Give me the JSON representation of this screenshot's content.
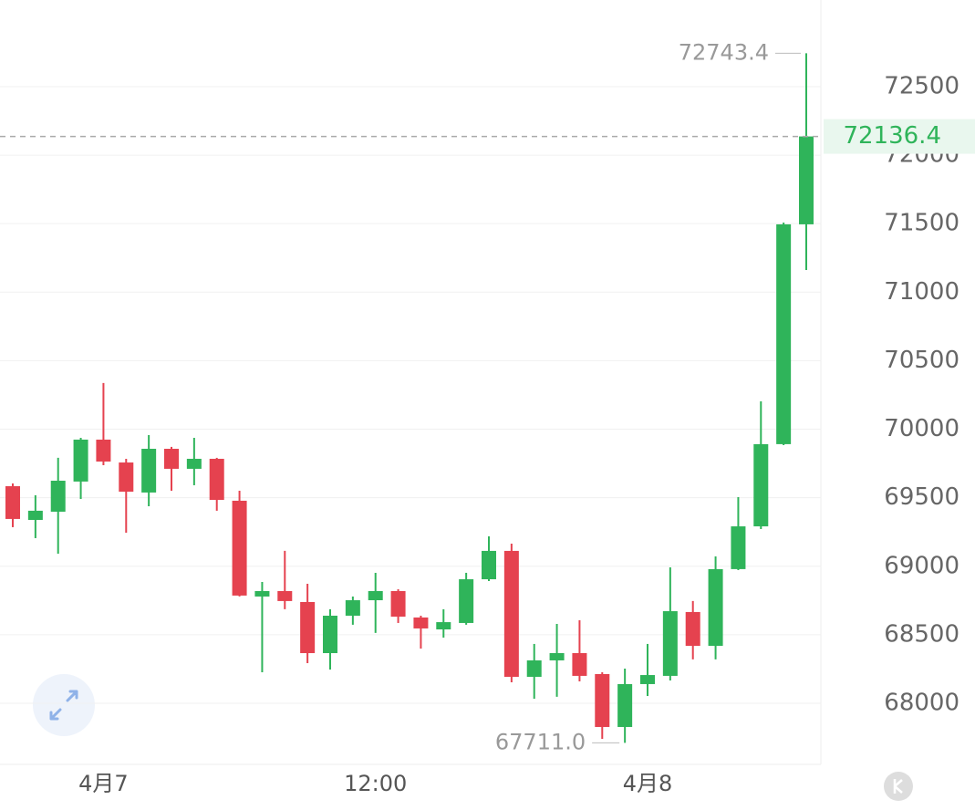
{
  "chart_data": {
    "type": "candlestick",
    "categories": [
      null,
      null,
      null,
      null,
      "4月7",
      null,
      null,
      null,
      null,
      null,
      null,
      null,
      null,
      null,
      null,
      null,
      "12:00",
      null,
      null,
      null,
      null,
      null,
      null,
      null,
      null,
      null,
      null,
      null,
      "4月8",
      null,
      null,
      null,
      null,
      null,
      null,
      null
    ],
    "open": [
      69584,
      69338,
      69398,
      69618,
      69924,
      69757,
      69538,
      69857,
      69711,
      69784,
      69478,
      68779,
      68819,
      68739,
      68366,
      68639,
      68752,
      68819,
      68626,
      68539,
      68586,
      68905,
      69112,
      68193,
      68313,
      68366,
      68213,
      67827,
      68140,
      68200,
      68666,
      68419,
      68979,
      69291,
      69891,
      71495
    ],
    "high": [
      69604,
      69518,
      69791,
      69937,
      70337,
      69784,
      69957,
      69871,
      69937,
      69791,
      69551,
      68885,
      69112,
      68872,
      68686,
      68779,
      68952,
      68832,
      68639,
      68686,
      68952,
      69218,
      69165,
      68433,
      68579,
      68606,
      68226,
      68253,
      68433,
      68992,
      68746,
      69072,
      69504,
      70203,
      71508,
      72743.4
    ],
    "low": [
      69285,
      69205,
      69092,
      69491,
      69737,
      69245,
      69438,
      69551,
      69591,
      69405,
      68780,
      68226,
      68686,
      68293,
      68246,
      68573,
      68513,
      68586,
      68399,
      68479,
      68573,
      68892,
      68153,
      68033,
      68047,
      68160,
      67740,
      67711,
      68053,
      68166,
      68320,
      68320,
      68972,
      69271,
      69884,
      71162
    ],
    "close": [
      69345,
      69405,
      69624,
      69924,
      69764,
      69544,
      69857,
      69711,
      69784,
      69484,
      68786,
      68819,
      68746,
      68366,
      68639,
      68752,
      68819,
      68632,
      68546,
      68592,
      68905,
      69112,
      68193,
      68313,
      68366,
      68200,
      67827,
      68140,
      68206,
      68672,
      68419,
      68979,
      69291,
      69891,
      71495,
      72136.4
    ],
    "up_color": "#2fb45a",
    "down_color": "#e5424f",
    "ylim": [
      67554,
      73132
    ],
    "yticks": [
      68000,
      68500,
      69000,
      69500,
      70000,
      70500,
      71000,
      71500,
      72000,
      72500
    ],
    "grid": true,
    "high_label": "72743.4",
    "low_label": "67711.0",
    "last_price_label": "72136.4"
  }
}
